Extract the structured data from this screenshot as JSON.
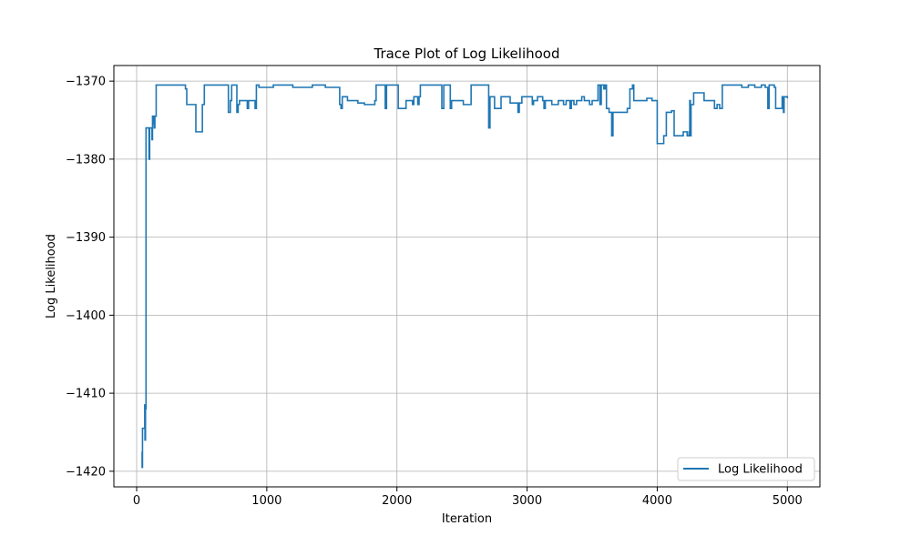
{
  "chart_data": {
    "type": "line",
    "title": "Trace Plot of Log Likelihood",
    "xlabel": "Iteration",
    "ylabel": "Log Likelihood",
    "xlim": [
      -175,
      5250
    ],
    "ylim": [
      -1422,
      -1368
    ],
    "xticks": [
      0,
      1000,
      2000,
      3000,
      4000,
      5000
    ],
    "yticks": [
      -1420,
      -1410,
      -1400,
      -1390,
      -1380,
      -1370
    ],
    "xtick_labels": [
      "0",
      "1000",
      "2000",
      "3000",
      "4000",
      "5000"
    ],
    "ytick_labels": [
      "−1420",
      "−1410",
      "−1400",
      "−1390",
      "−1380",
      "−1370"
    ],
    "grid": true,
    "legend_position": "lower-right",
    "series_color": "#1f77b4",
    "series": [
      {
        "name": "Log Likelihood",
        "points": [
          [
            40,
            -1417.5
          ],
          [
            42,
            -1419.5
          ],
          [
            45,
            -1414.5
          ],
          [
            58,
            -1414.5
          ],
          [
            62,
            -1411.5
          ],
          [
            64,
            -1416.0
          ],
          [
            68,
            -1412.0
          ],
          [
            72,
            -1376.0
          ],
          [
            95,
            -1380.0
          ],
          [
            100,
            -1376.0
          ],
          [
            118,
            -1377.5
          ],
          [
            122,
            -1374.5
          ],
          [
            130,
            -1375.5
          ],
          [
            135,
            -1376.0
          ],
          [
            140,
            -1374.5
          ],
          [
            150,
            -1370.5
          ],
          [
            370,
            -1370.5
          ],
          [
            375,
            -1371.0
          ],
          [
            385,
            -1373.0
          ],
          [
            440,
            -1373.0
          ],
          [
            450,
            -1373.0
          ],
          [
            455,
            -1376.5
          ],
          [
            500,
            -1376.5
          ],
          [
            505,
            -1373.0
          ],
          [
            520,
            -1370.5
          ],
          [
            700,
            -1370.5
          ],
          [
            705,
            -1374.0
          ],
          [
            720,
            -1372.5
          ],
          [
            730,
            -1370.5
          ],
          [
            760,
            -1370.5
          ],
          [
            770,
            -1374.0
          ],
          [
            780,
            -1373.0
          ],
          [
            790,
            -1372.5
          ],
          [
            840,
            -1372.5
          ],
          [
            850,
            -1373.5
          ],
          [
            860,
            -1372.5
          ],
          [
            900,
            -1372.5
          ],
          [
            910,
            -1373.5
          ],
          [
            920,
            -1370.5
          ],
          [
            940,
            -1370.8
          ],
          [
            1000,
            -1370.8
          ],
          [
            1050,
            -1370.5
          ],
          [
            1150,
            -1370.5
          ],
          [
            1200,
            -1370.8
          ],
          [
            1300,
            -1370.8
          ],
          [
            1350,
            -1370.5
          ],
          [
            1450,
            -1370.8
          ],
          [
            1550,
            -1370.8
          ],
          [
            1560,
            -1373.0
          ],
          [
            1570,
            -1373.5
          ],
          [
            1580,
            -1372.0
          ],
          [
            1620,
            -1372.5
          ],
          [
            1660,
            -1372.5
          ],
          [
            1700,
            -1372.8
          ],
          [
            1750,
            -1373.0
          ],
          [
            1800,
            -1373.0
          ],
          [
            1830,
            -1372.5
          ],
          [
            1840,
            -1370.5
          ],
          [
            1900,
            -1370.5
          ],
          [
            1910,
            -1373.5
          ],
          [
            1920,
            -1370.5
          ],
          [
            2000,
            -1370.5
          ],
          [
            2010,
            -1373.5
          ],
          [
            2060,
            -1373.5
          ],
          [
            2070,
            -1372.5
          ],
          [
            2110,
            -1372.5
          ],
          [
            2120,
            -1373.0
          ],
          [
            2130,
            -1372.0
          ],
          [
            2150,
            -1372.0
          ],
          [
            2160,
            -1373.0
          ],
          [
            2170,
            -1372.0
          ],
          [
            2180,
            -1370.5
          ],
          [
            2340,
            -1370.5
          ],
          [
            2345,
            -1373.5
          ],
          [
            2360,
            -1370.5
          ],
          [
            2400,
            -1370.5
          ],
          [
            2410,
            -1373.5
          ],
          [
            2420,
            -1372.5
          ],
          [
            2490,
            -1372.5
          ],
          [
            2500,
            -1372.5
          ],
          [
            2510,
            -1373.0
          ],
          [
            2560,
            -1373.0
          ],
          [
            2570,
            -1370.5
          ],
          [
            2700,
            -1370.5
          ],
          [
            2705,
            -1376.0
          ],
          [
            2715,
            -1372.0
          ],
          [
            2740,
            -1372.0
          ],
          [
            2750,
            -1373.5
          ],
          [
            2790,
            -1373.5
          ],
          [
            2800,
            -1372.0
          ],
          [
            2860,
            -1372.0
          ],
          [
            2870,
            -1372.8
          ],
          [
            2930,
            -1374.0
          ],
          [
            2940,
            -1372.8
          ],
          [
            2960,
            -1372.0
          ],
          [
            3020,
            -1372.0
          ],
          [
            3040,
            -1373.0
          ],
          [
            3050,
            -1372.5
          ],
          [
            3080,
            -1372.0
          ],
          [
            3120,
            -1372.5
          ],
          [
            3130,
            -1373.5
          ],
          [
            3140,
            -1372.5
          ],
          [
            3180,
            -1372.5
          ],
          [
            3190,
            -1373.0
          ],
          [
            3240,
            -1372.5
          ],
          [
            3280,
            -1373.0
          ],
          [
            3300,
            -1372.5
          ],
          [
            3330,
            -1373.5
          ],
          [
            3340,
            -1372.5
          ],
          [
            3360,
            -1373.0
          ],
          [
            3380,
            -1372.5
          ],
          [
            3400,
            -1372.5
          ],
          [
            3420,
            -1372.0
          ],
          [
            3440,
            -1372.5
          ],
          [
            3460,
            -1372.5
          ],
          [
            3480,
            -1373.0
          ],
          [
            3500,
            -1372.5
          ],
          [
            3540,
            -1372.5
          ],
          [
            3545,
            -1370.5
          ],
          [
            3560,
            -1373.0
          ],
          [
            3570,
            -1370.5
          ],
          [
            3590,
            -1371.0
          ],
          [
            3600,
            -1370.5
          ],
          [
            3610,
            -1373.5
          ],
          [
            3630,
            -1374.0
          ],
          [
            3650,
            -1377.0
          ],
          [
            3660,
            -1374.0
          ],
          [
            3700,
            -1374.0
          ],
          [
            3760,
            -1374.0
          ],
          [
            3770,
            -1373.5
          ],
          [
            3790,
            -1371.0
          ],
          [
            3810,
            -1370.5
          ],
          [
            3820,
            -1372.5
          ],
          [
            3900,
            -1372.5
          ],
          [
            3920,
            -1372.2
          ],
          [
            3960,
            -1372.5
          ],
          [
            3990,
            -1372.5
          ],
          [
            4000,
            -1378.0
          ],
          [
            4030,
            -1378.0
          ],
          [
            4050,
            -1377.0
          ],
          [
            4070,
            -1374.0
          ],
          [
            4110,
            -1373.8
          ],
          [
            4130,
            -1377.0
          ],
          [
            4160,
            -1377.0
          ],
          [
            4200,
            -1376.5
          ],
          [
            4220,
            -1376.5
          ],
          [
            4230,
            -1377.0
          ],
          [
            4245,
            -1376.5
          ],
          [
            4250,
            -1372.5
          ],
          [
            4255,
            -1377.0
          ],
          [
            4260,
            -1373.0
          ],
          [
            4280,
            -1371.5
          ],
          [
            4340,
            -1371.5
          ],
          [
            4360,
            -1372.5
          ],
          [
            4390,
            -1372.5
          ],
          [
            4440,
            -1373.5
          ],
          [
            4460,
            -1373.0
          ],
          [
            4480,
            -1373.5
          ],
          [
            4500,
            -1370.5
          ],
          [
            4600,
            -1370.5
          ],
          [
            4650,
            -1370.8
          ],
          [
            4700,
            -1370.5
          ],
          [
            4750,
            -1370.8
          ],
          [
            4800,
            -1370.5
          ],
          [
            4830,
            -1370.8
          ],
          [
            4850,
            -1373.5
          ],
          [
            4860,
            -1370.5
          ],
          [
            4900,
            -1370.8
          ],
          [
            4910,
            -1373.5
          ],
          [
            4950,
            -1373.5
          ],
          [
            4960,
            -1372.0
          ],
          [
            4970,
            -1374.0
          ],
          [
            4975,
            -1372.0
          ],
          [
            4990,
            -1372.0
          ],
          [
            5000,
            -1372.2
          ]
        ]
      }
    ]
  }
}
